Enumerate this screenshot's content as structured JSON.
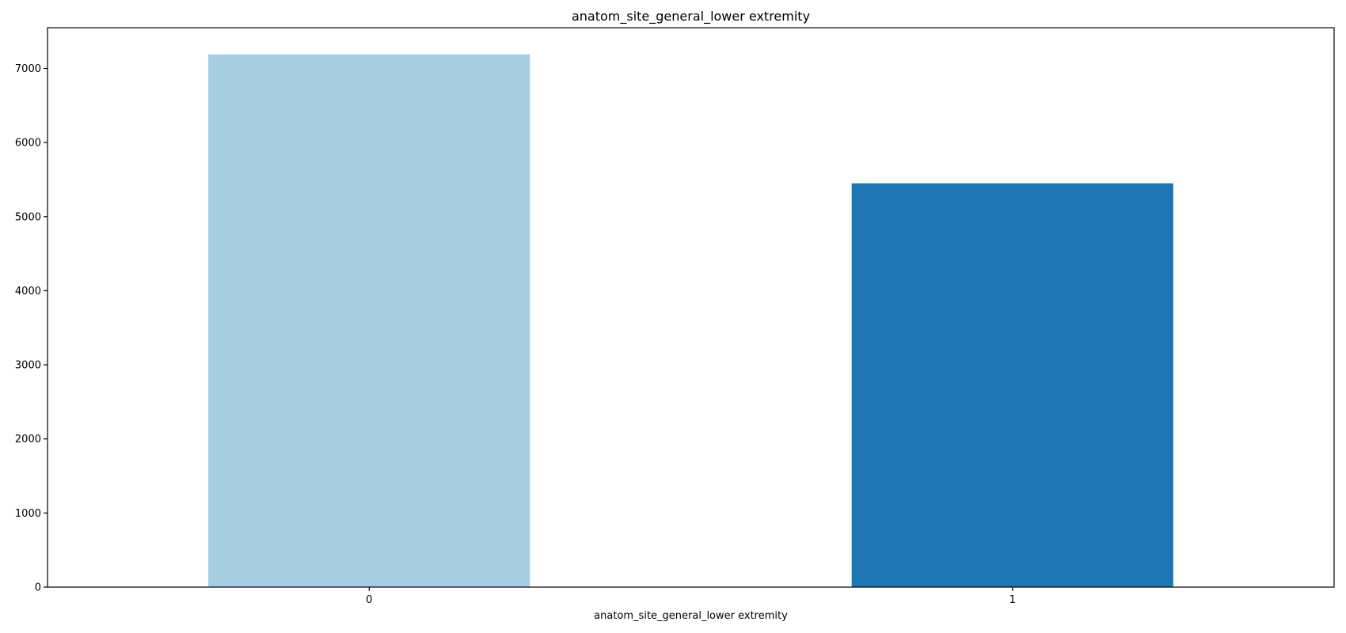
{
  "chart_data": {
    "type": "bar",
    "title": "anatom_site_general_lower extremity",
    "xlabel": "anatom_site_general_lower extremity",
    "ylabel": "",
    "categories": [
      "0",
      "1"
    ],
    "values": [
      7190,
      5450
    ],
    "colors": [
      "#a6cee3",
      "#1f78b4"
    ],
    "ylim": [
      0,
      7550
    ],
    "yticks": [
      0,
      1000,
      2000,
      3000,
      4000,
      5000,
      6000,
      7000
    ],
    "grid": false,
    "legend": "none"
  }
}
